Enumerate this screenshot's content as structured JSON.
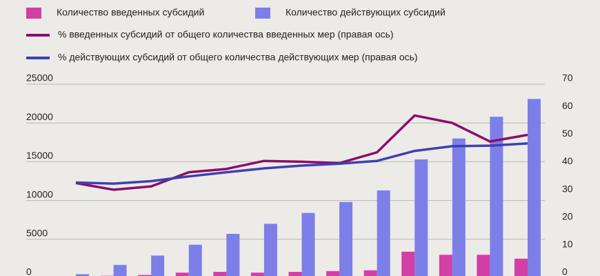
{
  "chart_data": {
    "type": "bar",
    "categories": [
      null,
      null,
      null,
      null,
      null,
      null,
      null,
      null,
      null,
      null,
      null,
      null,
      null
    ],
    "series": [
      {
        "name": "Количество введенных субсидий",
        "type": "bar",
        "color": "#d23fa6",
        "values": [
          100,
          300,
          400,
          700,
          800,
          700,
          800,
          900,
          1000,
          3400,
          3000,
          3000,
          2500
        ]
      },
      {
        "name": "Количество действующих субсидий",
        "type": "bar",
        "color": "#7c7fe8",
        "values": [
          500,
          1700,
          2900,
          4300,
          5700,
          7000,
          8400,
          9800,
          11300,
          15300,
          18000,
          20800,
          23100
        ]
      },
      {
        "name": "% введенных субсидий от общего количества введенных мер (правая ось)",
        "type": "line",
        "axis": "y2",
        "color": "#8a0d6c",
        "values": [
          34.3,
          31.9,
          33.1,
          38.2,
          39.4,
          42.3,
          42.0,
          41.5,
          45.4,
          58.7,
          56.0,
          49.3,
          51.7
        ]
      },
      {
        "name": "% действующих субсидий от общего количества действующих мер (правая ось)",
        "type": "line",
        "axis": "y2",
        "color": "#3e40b2",
        "values": [
          34.5,
          34.1,
          35.0,
          36.7,
          38.2,
          39.6,
          40.6,
          41.3,
          42.3,
          45.9,
          47.6,
          47.8,
          48.6
        ]
      }
    ],
    "ylim": [
      0,
      25000
    ],
    "yticks": [
      0,
      5000,
      10000,
      15000,
      20000,
      25000
    ],
    "y2lim": [
      0,
      70
    ],
    "y2ticks": [
      0,
      10,
      20,
      30,
      40,
      50,
      60,
      70
    ],
    "grid": true
  }
}
